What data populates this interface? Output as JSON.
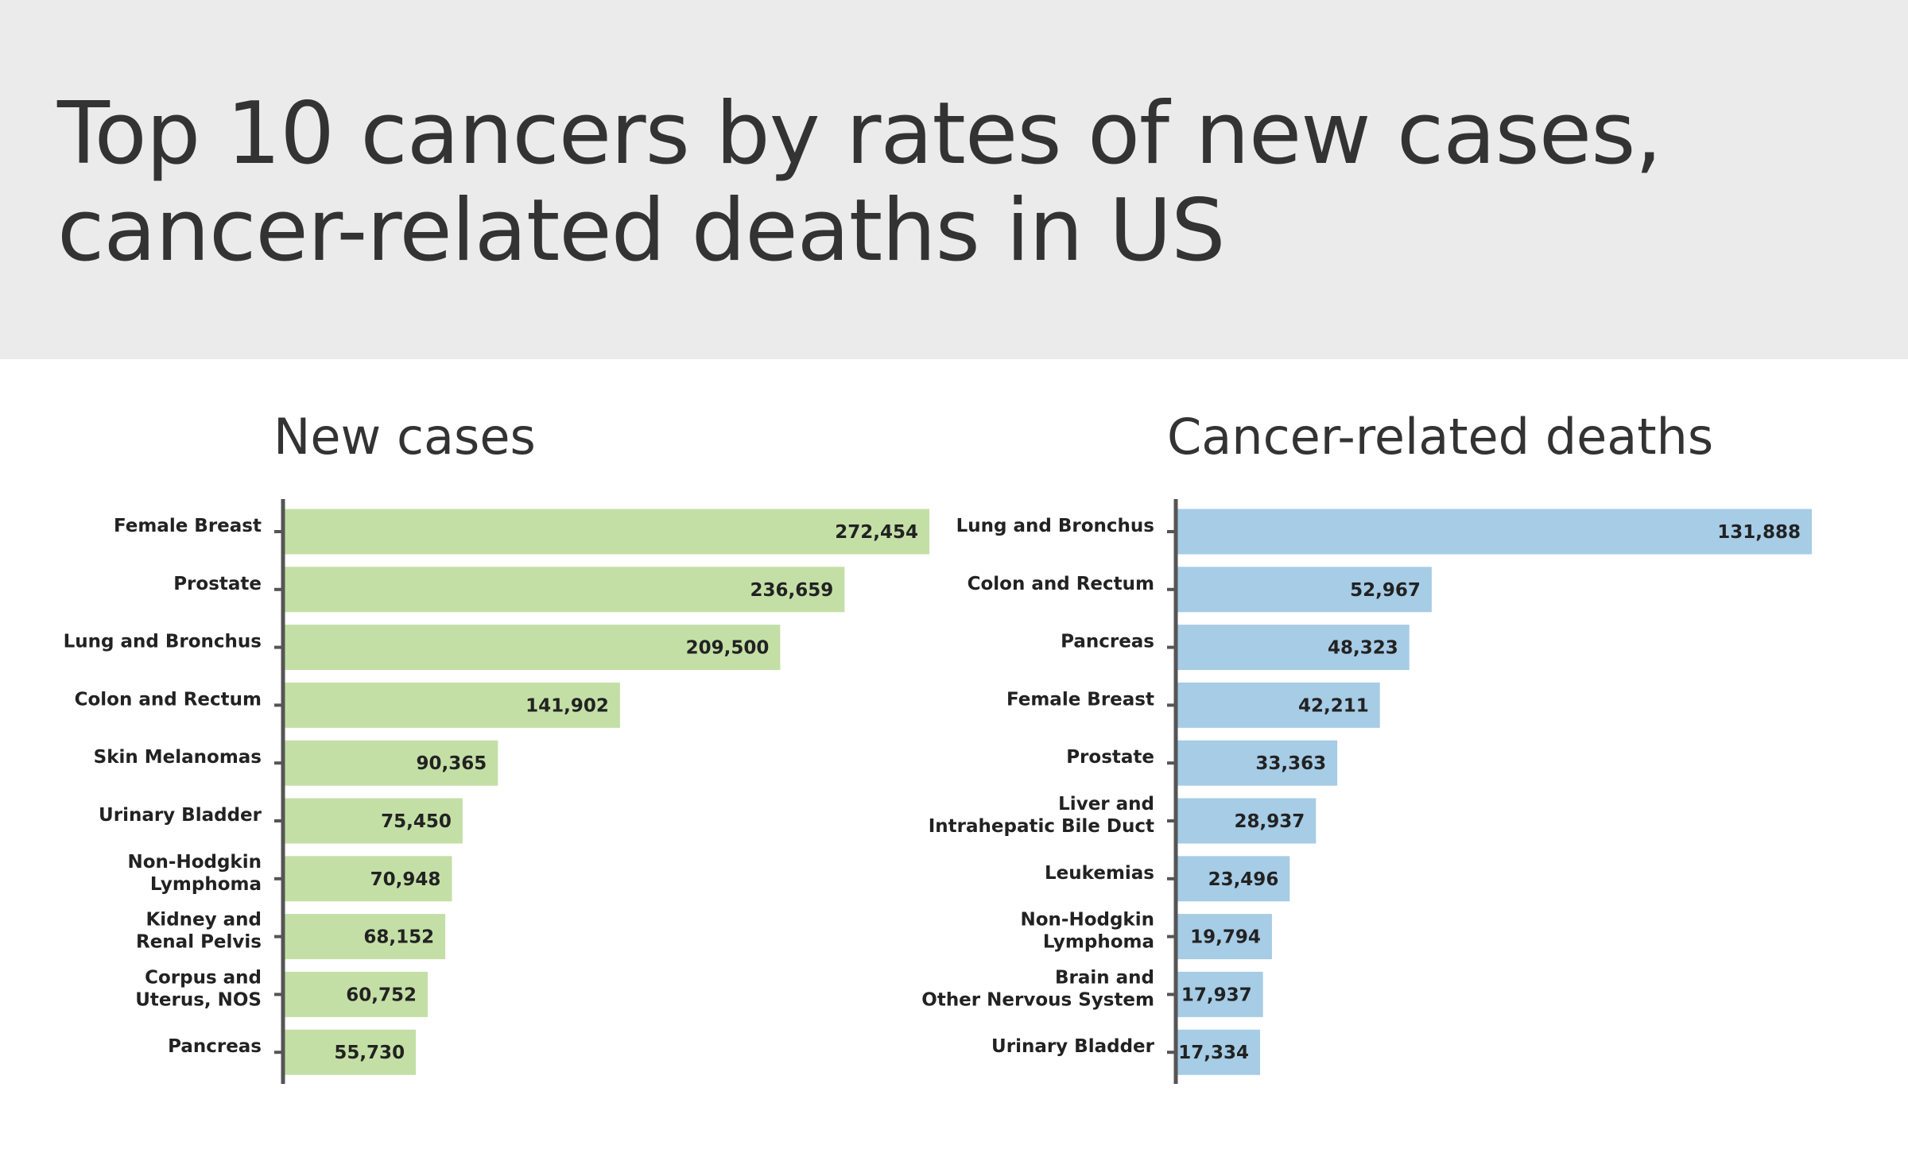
{
  "title": {
    "line1": "Top 10 cancers by rates of new cases,",
    "line2": "cancer-related deaths in US"
  },
  "colors": {
    "header_background": "#ebebeb",
    "new_cases_bar": "#c4dfa6",
    "deaths_bar": "#a6cce6",
    "axis": "#555555",
    "text": "#333333"
  },
  "chart_data": [
    {
      "type": "bar",
      "orientation": "horizontal",
      "title": "New cases",
      "categories": [
        "Female Breast",
        "Prostate",
        "Lung and Bronchus",
        "Colon and Rectum",
        "Skin Melanomas",
        "Urinary Bladder",
        "Non-Hodgkin\nLymphoma",
        "Kidney and\nRenal Pelvis",
        "Corpus and\nUterus, NOS",
        "Pancreas"
      ],
      "values": [
        272454,
        236659,
        209500,
        141902,
        90365,
        75450,
        70948,
        68152,
        60752,
        55730
      ],
      "value_labels": [
        "272,454",
        "236,659",
        "209,500",
        "141,902",
        "90,365",
        "75,450",
        "70,948",
        "68,152",
        "60,752",
        "55,730"
      ],
      "xlim": [
        0,
        272454
      ],
      "grid": false
    },
    {
      "type": "bar",
      "orientation": "horizontal",
      "title": "Cancer-related deaths",
      "categories": [
        "Lung and Bronchus",
        "Colon and Rectum",
        "Pancreas",
        "Female Breast",
        "Prostate",
        "Liver and\nIntrahepatic Bile Duct",
        "Leukemias",
        "Non-Hodgkin\nLymphoma",
        "Brain and\nOther Nervous System",
        "Urinary Bladder"
      ],
      "values": [
        131888,
        52967,
        48323,
        42211,
        33363,
        28937,
        23496,
        19794,
        17937,
        17334
      ],
      "value_labels": [
        "131,888",
        "52,967",
        "48,323",
        "42,211",
        "33,363",
        "28,937",
        "23,496",
        "19,794",
        "17,937",
        "17,334"
      ],
      "xlim": [
        0,
        131888
      ],
      "grid": false
    }
  ]
}
